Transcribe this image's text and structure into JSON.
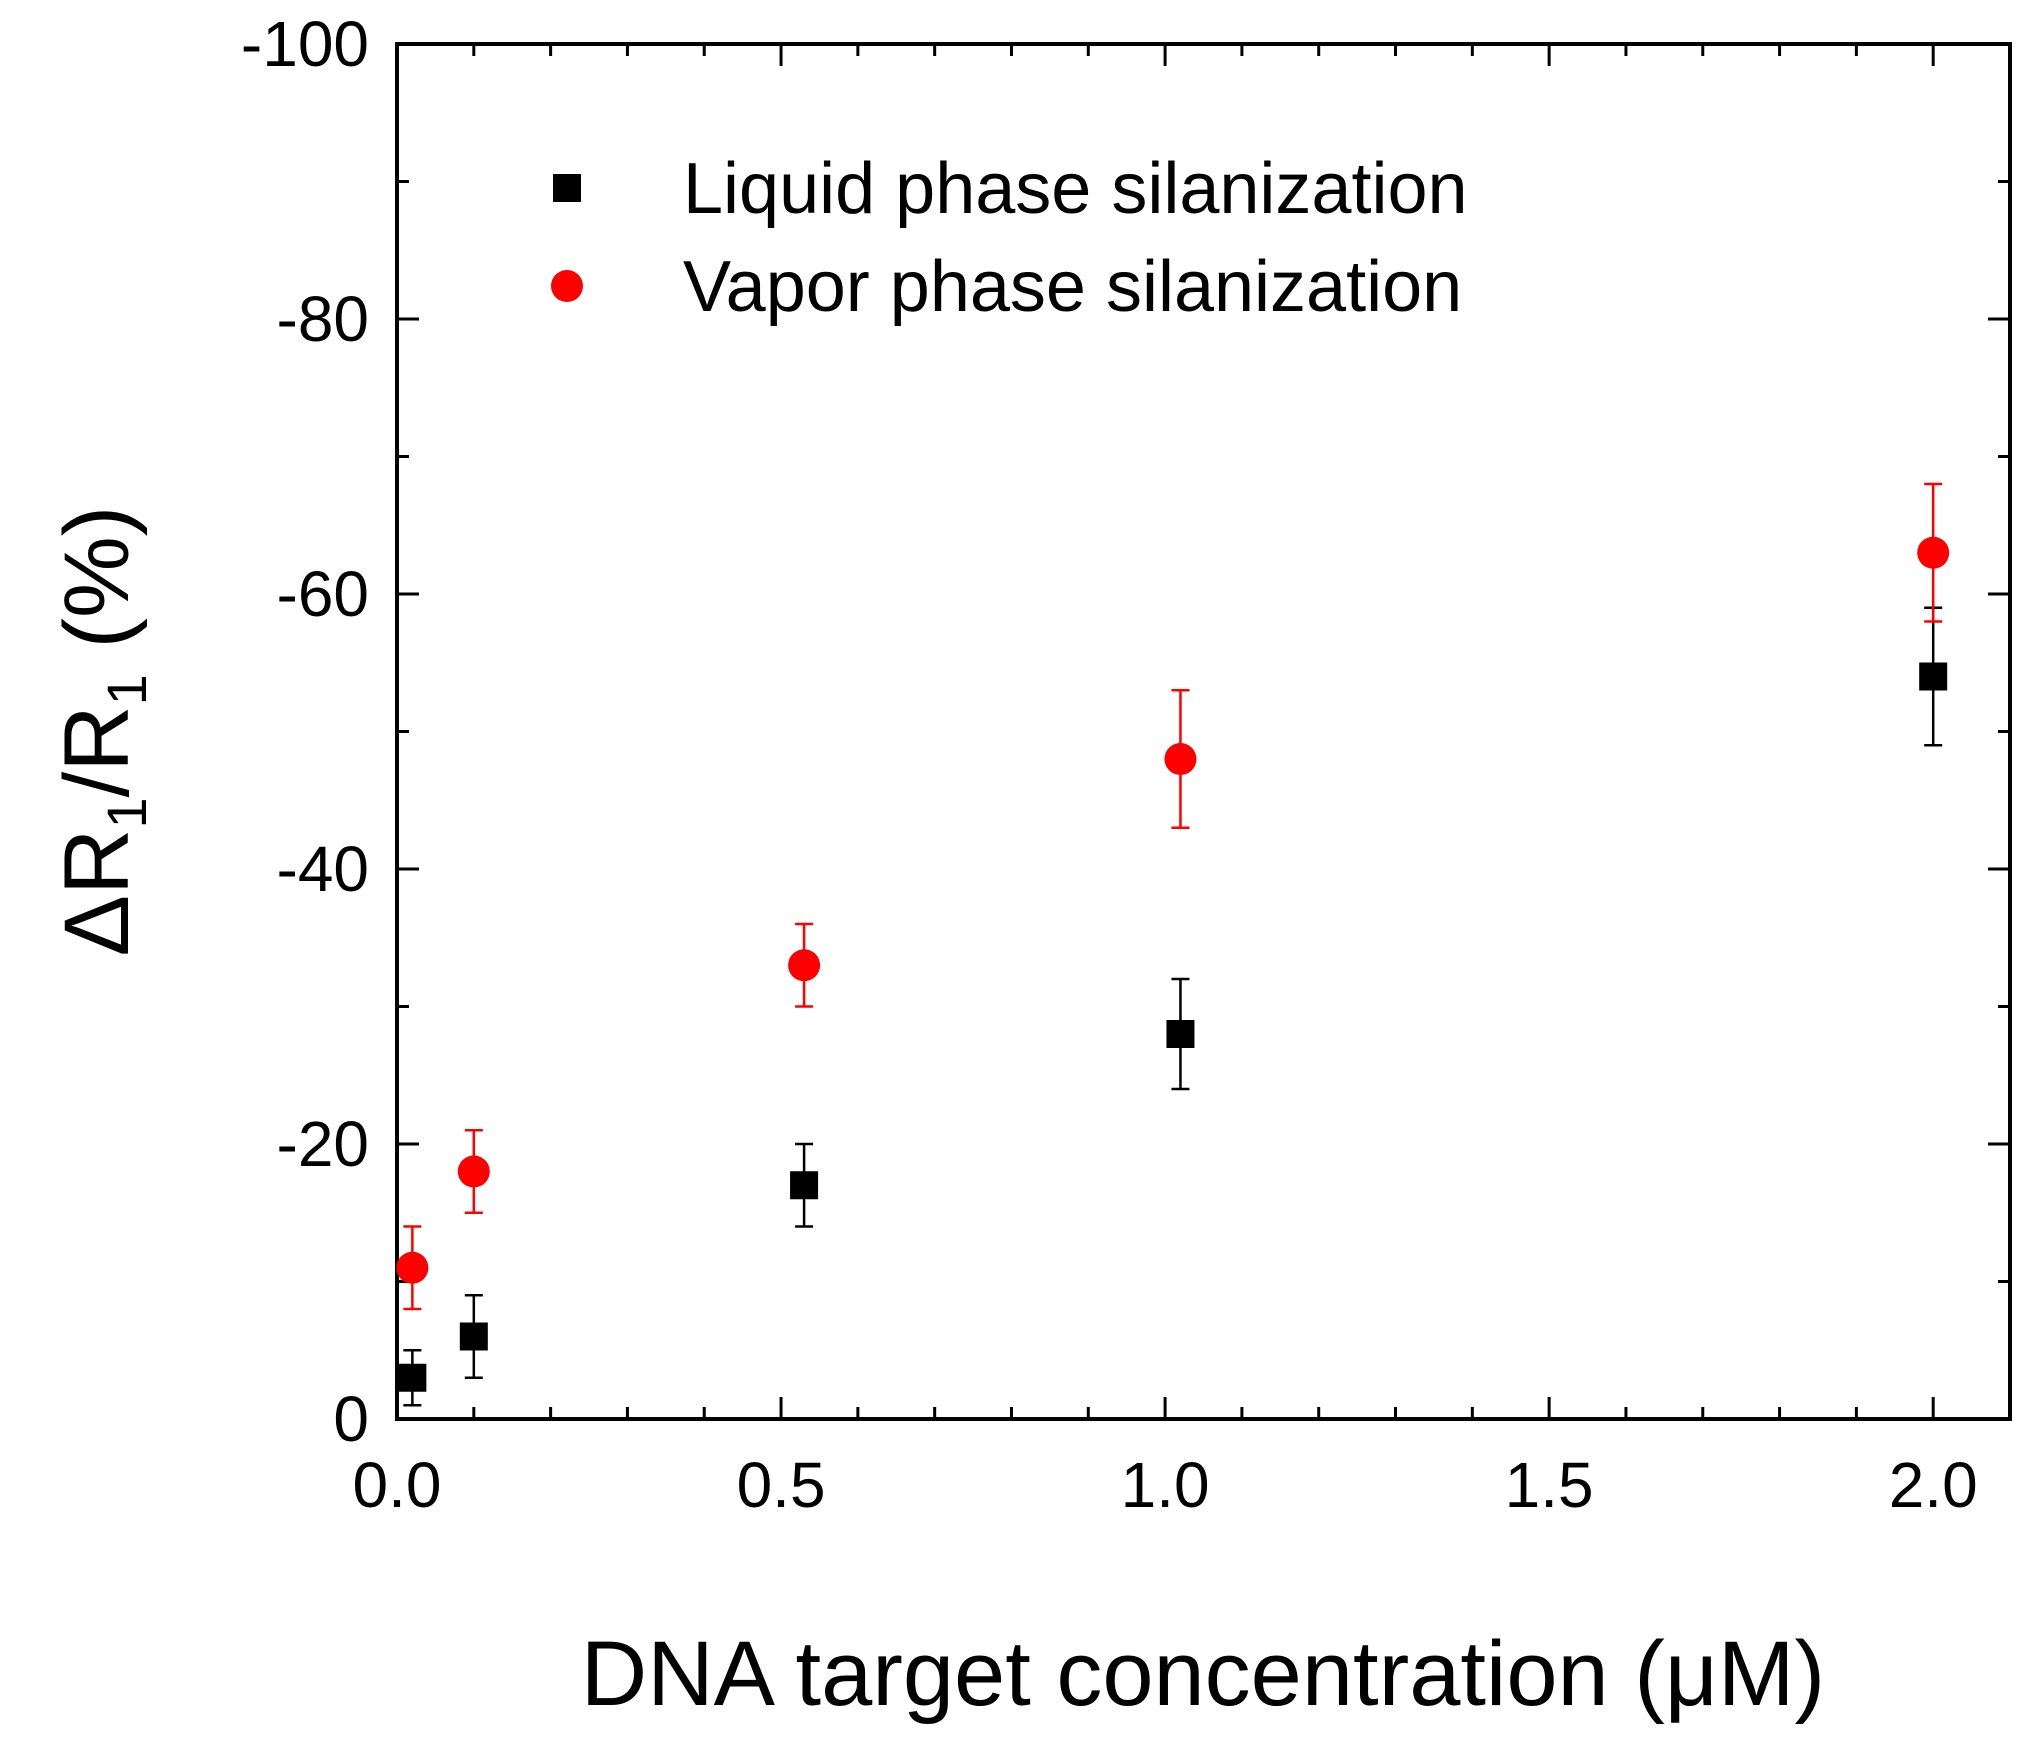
{
  "chart_data": {
    "type": "scatter",
    "xlabel": "DNA target concentration (μM)",
    "ylabel": {
      "prefix": "ΔR",
      "sub1": "1",
      "middle": "/R",
      "sub2": "1",
      "suffix": " (%)"
    },
    "xlim": [
      0.0,
      2.1
    ],
    "ylim": [
      0,
      -100
    ],
    "xticks": [
      {
        "value": 0.0,
        "label": "0.0"
      },
      {
        "value": 0.5,
        "label": "0.5"
      },
      {
        "value": 1.0,
        "label": "1.0"
      },
      {
        "value": 1.5,
        "label": "1.5"
      },
      {
        "value": 2.0,
        "label": "2.0"
      }
    ],
    "yticks": [
      {
        "value": 0,
        "label": "0"
      },
      {
        "value": -20,
        "label": "-20"
      },
      {
        "value": -40,
        "label": "-40"
      },
      {
        "value": -60,
        "label": "-60"
      },
      {
        "value": -80,
        "label": "-80"
      },
      {
        "value": -100,
        "label": "-100"
      }
    ],
    "x_minor_step": 0.1,
    "y_minor_step": 10,
    "grid": false,
    "legend_position": "top-left",
    "series": [
      {
        "name": "Liquid phase silanization",
        "marker": "square",
        "color": "#000000",
        "points": [
          {
            "x": 0.02,
            "y": -3,
            "err": 2
          },
          {
            "x": 0.1,
            "y": -6,
            "err": 3
          },
          {
            "x": 0.53,
            "y": -17,
            "err": 3
          },
          {
            "x": 1.02,
            "y": -28,
            "err": 4
          },
          {
            "x": 2.0,
            "y": -54,
            "err": 5
          }
        ]
      },
      {
        "name": "Vapor phase silanization",
        "marker": "circle",
        "color": "#ff0000",
        "points": [
          {
            "x": 0.02,
            "y": -11,
            "err": 3
          },
          {
            "x": 0.1,
            "y": -18,
            "err": 3
          },
          {
            "x": 0.53,
            "y": -33,
            "err": 3
          },
          {
            "x": 1.02,
            "y": -48,
            "err": 5
          },
          {
            "x": 2.0,
            "y": -63,
            "err": 5
          }
        ]
      }
    ]
  }
}
